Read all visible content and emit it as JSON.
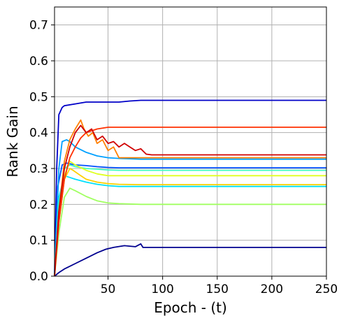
{
  "chart_data": {
    "type": "line",
    "title": "",
    "xlabel": "Epoch - (t)",
    "ylabel": "Rank Gain",
    "xlim": [
      1,
      250
    ],
    "ylim": [
      0.0,
      0.75
    ],
    "xticks": [
      50,
      100,
      150,
      200,
      250
    ],
    "xtick_labels": [
      "50",
      "100",
      "150",
      "200",
      "250"
    ],
    "yticks": [
      0.0,
      0.1,
      0.2,
      0.3,
      0.4,
      0.5,
      0.6,
      0.7
    ],
    "ytick_labels": [
      "0.0",
      "0.1",
      "0.2",
      "0.3",
      "0.4",
      "0.5",
      "0.6",
      "0.7"
    ],
    "grid": true,
    "colormap": "jet",
    "series": [
      {
        "color": "#00008f",
        "x": [
          1,
          5,
          10,
          20,
          30,
          40,
          48,
          55,
          65,
          75,
          80,
          82,
          85,
          100,
          150,
          200,
          250
        ],
        "y": [
          0.0,
          0.01,
          0.02,
          0.035,
          0.05,
          0.065,
          0.075,
          0.08,
          0.085,
          0.082,
          0.09,
          0.08,
          0.08,
          0.08,
          0.08,
          0.08,
          0.08
        ]
      },
      {
        "color": "#0000c8",
        "x": [
          1,
          3,
          5,
          8,
          10,
          20,
          30,
          40,
          50,
          60,
          70,
          80,
          90,
          100,
          110,
          150,
          200,
          250
        ],
        "y": [
          0.0,
          0.3,
          0.45,
          0.47,
          0.475,
          0.48,
          0.485,
          0.485,
          0.485,
          0.485,
          0.488,
          0.49,
          0.49,
          0.49,
          0.49,
          0.49,
          0.49,
          0.49
        ]
      },
      {
        "color": "#0050ff",
        "x": [
          1,
          4,
          8,
          12,
          20,
          30,
          40,
          50,
          60,
          80,
          100,
          150,
          200,
          250
        ],
        "y": [
          0.0,
          0.25,
          0.31,
          0.315,
          0.31,
          0.308,
          0.305,
          0.303,
          0.302,
          0.302,
          0.302,
          0.302,
          0.302,
          0.302
        ]
      },
      {
        "color": "#00a0ff",
        "x": [
          1,
          5,
          8,
          12,
          15,
          20,
          30,
          40,
          50,
          60,
          70,
          80,
          100,
          150,
          200,
          250
        ],
        "y": [
          0.0,
          0.3,
          0.375,
          0.38,
          0.375,
          0.36,
          0.345,
          0.335,
          0.33,
          0.328,
          0.327,
          0.326,
          0.326,
          0.326,
          0.326,
          0.326
        ]
      },
      {
        "color": "#00e0ff",
        "x": [
          1,
          5,
          10,
          15,
          20,
          30,
          40,
          50,
          60,
          80,
          100,
          150,
          200,
          250
        ],
        "y": [
          0.0,
          0.22,
          0.28,
          0.275,
          0.27,
          0.262,
          0.256,
          0.252,
          0.25,
          0.25,
          0.25,
          0.25,
          0.25,
          0.25
        ]
      },
      {
        "color": "#40ffc0",
        "x": [
          1,
          5,
          10,
          15,
          20,
          30,
          40,
          50,
          60,
          80,
          100,
          150,
          200,
          250
        ],
        "y": [
          0.0,
          0.2,
          0.3,
          0.31,
          0.305,
          0.3,
          0.298,
          0.296,
          0.295,
          0.295,
          0.295,
          0.295,
          0.295,
          0.295
        ]
      },
      {
        "color": "#a0ff60",
        "x": [
          1,
          5,
          10,
          15,
          20,
          30,
          40,
          50,
          60,
          80,
          100,
          150,
          200,
          250
        ],
        "y": [
          0.0,
          0.12,
          0.22,
          0.245,
          0.238,
          0.222,
          0.21,
          0.204,
          0.202,
          0.2,
          0.2,
          0.2,
          0.2,
          0.2
        ]
      },
      {
        "color": "#e0ff20",
        "x": [
          1,
          5,
          10,
          15,
          20,
          30,
          40,
          50,
          60,
          80,
          100,
          150,
          200,
          250
        ],
        "y": [
          0.0,
          0.15,
          0.28,
          0.32,
          0.31,
          0.295,
          0.285,
          0.28,
          0.28,
          0.28,
          0.28,
          0.28,
          0.28,
          0.28
        ]
      },
      {
        "color": "#ffd000",
        "x": [
          1,
          5,
          10,
          15,
          18,
          25,
          30,
          40,
          50,
          60,
          80,
          100,
          150,
          200,
          250
        ],
        "y": [
          0.0,
          0.15,
          0.27,
          0.3,
          0.295,
          0.28,
          0.27,
          0.262,
          0.258,
          0.256,
          0.255,
          0.255,
          0.255,
          0.255,
          0.255
        ]
      },
      {
        "color": "#ff8000",
        "x": [
          1,
          5,
          10,
          15,
          20,
          25,
          28,
          32,
          36,
          40,
          45,
          50,
          55,
          60,
          70,
          80,
          100,
          150,
          200,
          250
        ],
        "y": [
          0.0,
          0.18,
          0.32,
          0.38,
          0.41,
          0.435,
          0.41,
          0.39,
          0.4,
          0.37,
          0.38,
          0.35,
          0.36,
          0.33,
          0.33,
          0.33,
          0.33,
          0.33,
          0.33,
          0.33
        ]
      },
      {
        "color": "#ff3000",
        "x": [
          1,
          5,
          10,
          15,
          20,
          25,
          30,
          40,
          50,
          60,
          80,
          100,
          150,
          200,
          250
        ],
        "y": [
          0.0,
          0.15,
          0.27,
          0.33,
          0.36,
          0.385,
          0.4,
          0.41,
          0.415,
          0.415,
          0.415,
          0.415,
          0.415,
          0.415,
          0.415
        ]
      },
      {
        "color": "#d00000",
        "x": [
          1,
          5,
          10,
          15,
          20,
          25,
          30,
          35,
          40,
          45,
          50,
          55,
          60,
          65,
          70,
          75,
          80,
          85,
          90,
          100,
          150,
          200,
          250
        ],
        "y": [
          0.0,
          0.18,
          0.3,
          0.36,
          0.4,
          0.42,
          0.4,
          0.41,
          0.38,
          0.39,
          0.37,
          0.375,
          0.36,
          0.37,
          0.36,
          0.35,
          0.355,
          0.34,
          0.338,
          0.338,
          0.338,
          0.338,
          0.338
        ]
      }
    ]
  }
}
